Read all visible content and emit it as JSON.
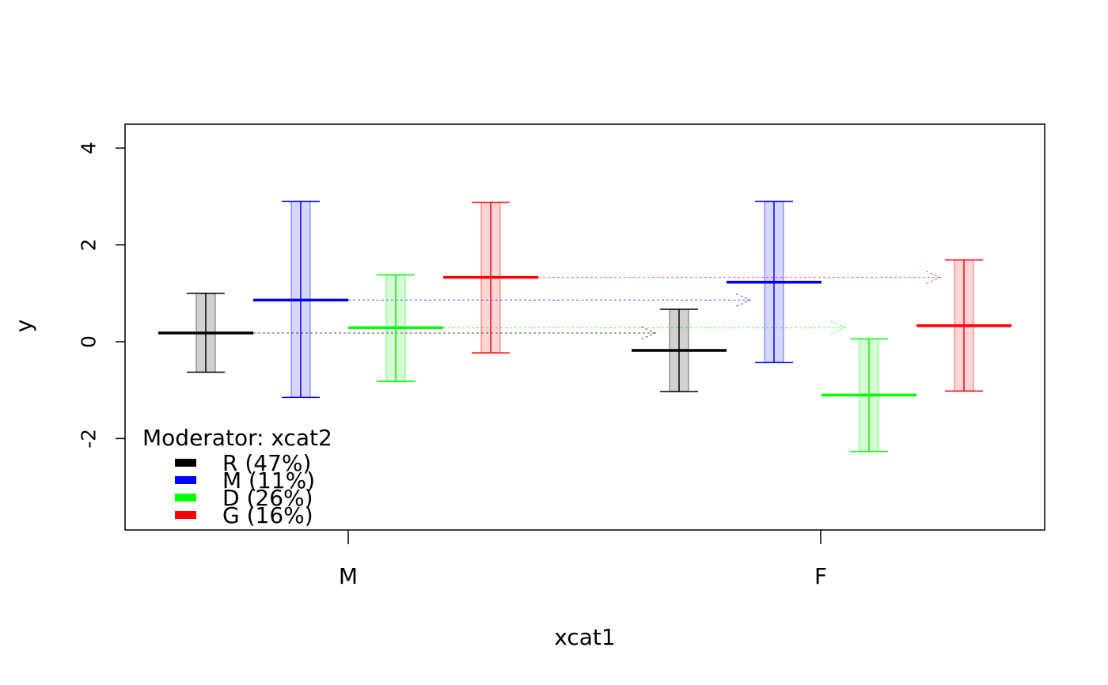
{
  "chart_data": {
    "type": "errorbar",
    "title": "",
    "xlabel": "xcat1",
    "ylabel": "y",
    "ylim": [
      -3.9,
      4.5
    ],
    "yticks": [
      -2,
      0,
      2,
      4
    ],
    "ytick_labels": [
      "-2",
      "0",
      "2",
      "4"
    ],
    "categories": [
      "M",
      "F"
    ],
    "grid": false,
    "legend": {
      "title": "Moderator: xcat2",
      "placement": "bottom-left",
      "entries": [
        "R (47%)",
        "M (11%)",
        "D (26%)",
        "G (16%)"
      ]
    },
    "series": [
      {
        "name": "R (47%)",
        "color": "#000000",
        "mean": [
          0.18,
          -0.18
        ],
        "lower": [
          -0.63,
          -1.03
        ],
        "upper": [
          1.0,
          0.67
        ]
      },
      {
        "name": "M (11%)",
        "color": "#0000ff",
        "mean": [
          0.86,
          1.23
        ],
        "lower": [
          -1.15,
          -0.43
        ],
        "upper": [
          2.9,
          2.9
        ]
      },
      {
        "name": "D (26%)",
        "color": "#00ff00",
        "mean": [
          0.29,
          -1.1
        ],
        "lower": [
          -0.82,
          -2.27
        ],
        "upper": [
          1.38,
          0.06
        ]
      },
      {
        "name": "G (16%)",
        "color": "#ff0000",
        "mean": [
          1.33,
          0.33
        ],
        "lower": [
          -0.23,
          -1.02
        ],
        "upper": [
          2.88,
          1.69
        ]
      }
    ]
  }
}
